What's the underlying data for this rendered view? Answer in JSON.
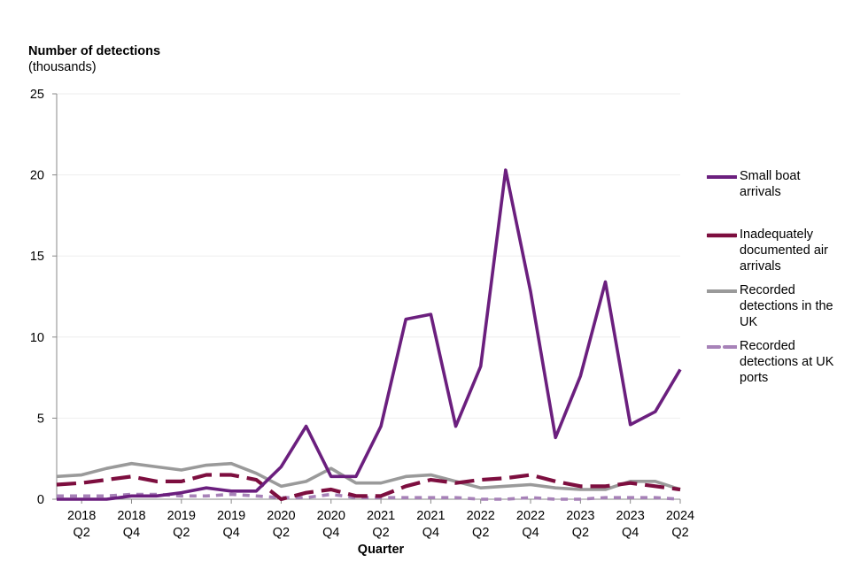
{
  "chart_data": {
    "type": "line",
    "ylabel": "Number of detections",
    "ylabel_sub": "(thousands)",
    "xlabel": "Quarter",
    "ylim": [
      0,
      25
    ],
    "yticks": [
      0,
      5,
      10,
      15,
      20,
      25
    ],
    "grid": true,
    "legend_position": "right",
    "x": [
      "2018 Q1",
      "2018 Q2",
      "2018 Q3",
      "2018 Q4",
      "2019 Q1",
      "2019 Q2",
      "2019 Q3",
      "2019 Q4",
      "2020 Q1",
      "2020 Q2",
      "2020 Q3",
      "2020 Q4",
      "2021 Q1",
      "2021 Q2",
      "2021 Q3",
      "2021 Q4",
      "2022 Q1",
      "2022 Q2",
      "2022 Q3",
      "2022 Q4",
      "2023 Q1",
      "2023 Q2",
      "2023 Q3",
      "2023 Q4",
      "2024 Q1",
      "2024 Q2"
    ],
    "xtick_labels": [
      {
        "year": "2018",
        "q": "Q2"
      },
      {
        "year": "2018",
        "q": "Q4"
      },
      {
        "year": "2019",
        "q": "Q2"
      },
      {
        "year": "2019",
        "q": "Q4"
      },
      {
        "year": "2020",
        "q": "Q2"
      },
      {
        "year": "2020",
        "q": "Q4"
      },
      {
        "year": "2021",
        "q": "Q2"
      },
      {
        "year": "2021",
        "q": "Q4"
      },
      {
        "year": "2022",
        "q": "Q2"
      },
      {
        "year": "2022",
        "q": "Q4"
      },
      {
        "year": "2023",
        "q": "Q2"
      },
      {
        "year": "2023",
        "q": "Q4"
      },
      {
        "year": "2024",
        "q": "Q2"
      }
    ],
    "series": [
      {
        "name": "Small boat arrivals",
        "color": "#6b1f7e",
        "dash": "solid",
        "values": [
          0.0,
          0.0,
          0.0,
          0.2,
          0.2,
          0.4,
          0.7,
          0.5,
          0.5,
          2.0,
          4.5,
          1.4,
          1.4,
          4.5,
          11.1,
          11.4,
          4.5,
          8.2,
          20.3,
          12.8,
          3.8,
          7.6,
          13.4,
          4.6,
          5.4,
          8.0
        ]
      },
      {
        "name": "Inadequately documented air arrivals",
        "color": "#7d0e3f",
        "dash": "long",
        "values": [
          0.9,
          1.0,
          1.2,
          1.4,
          1.1,
          1.1,
          1.5,
          1.5,
          1.2,
          0.0,
          0.4,
          0.6,
          0.2,
          0.2,
          0.8,
          1.2,
          1.0,
          1.2,
          1.3,
          1.5,
          1.1,
          0.8,
          0.8,
          1.0,
          0.8,
          0.6
        ]
      },
      {
        "name": "Recorded detections in the UK",
        "color": "#9a9a9a",
        "dash": "solid",
        "values": [
          1.4,
          1.5,
          1.9,
          2.2,
          2.0,
          1.8,
          2.1,
          2.2,
          1.6,
          0.8,
          1.1,
          1.9,
          1.0,
          1.0,
          1.4,
          1.5,
          1.1,
          0.7,
          0.8,
          0.9,
          0.7,
          0.6,
          0.6,
          1.1,
          1.1,
          0.6
        ]
      },
      {
        "name": "Recorded detections at UK ports",
        "color": "#a782b8",
        "dash": "short",
        "values": [
          0.2,
          0.2,
          0.2,
          0.3,
          0.3,
          0.2,
          0.2,
          0.3,
          0.2,
          0.1,
          0.1,
          0.3,
          0.1,
          0.1,
          0.1,
          0.1,
          0.1,
          0.0,
          0.0,
          0.1,
          0.0,
          0.0,
          0.1,
          0.1,
          0.1,
          0.0
        ]
      }
    ]
  }
}
